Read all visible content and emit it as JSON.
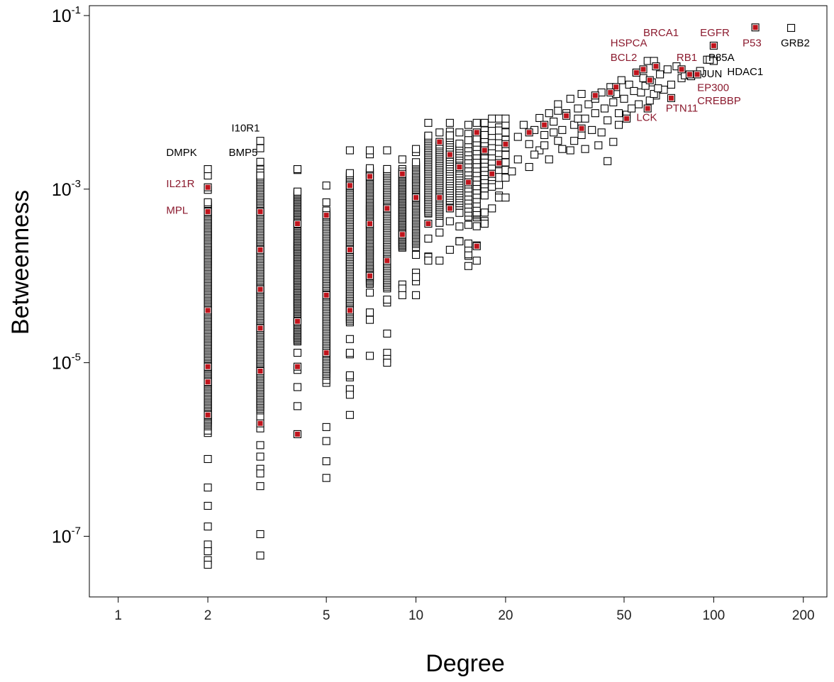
{
  "colors": {
    "axis": "#000000",
    "marker_default": "#000000",
    "marker_highlight": "#c0141c",
    "label_highlight": "#8b1a2e",
    "label_default": "#000000"
  },
  "chart_data": {
    "type": "scatter",
    "title": "",
    "xlabel": "Degree",
    "ylabel": "Betweenness",
    "xscale": "log",
    "yscale": "log",
    "xlim": [
      0.8,
      240
    ],
    "ylim": [
      2e-08,
      0.13
    ],
    "grid": false,
    "xticks": [
      {
        "value": 1,
        "label": "1"
      },
      {
        "value": 2,
        "label": "2"
      },
      {
        "value": 5,
        "label": "5"
      },
      {
        "value": 10,
        "label": "10"
      },
      {
        "value": 20,
        "label": "20"
      },
      {
        "value": 50,
        "label": "50"
      },
      {
        "value": 100,
        "label": "100"
      },
      {
        "value": 200,
        "label": "200"
      }
    ],
    "yticks": [
      {
        "value": 0.1,
        "base": "10",
        "exp": "-1"
      },
      {
        "value": 0.001,
        "base": "10",
        "exp": "-3"
      },
      {
        "value": 1e-05,
        "base": "10",
        "exp": "-5"
      },
      {
        "value": 1e-07,
        "base": "10",
        "exp": "-7"
      }
    ],
    "columns": [
      {
        "x": 2,
        "ymin": 4.7e-08,
        "ymax": 0.0017,
        "n_sparse": 18,
        "n_dense": 150,
        "highlight": [
          0.00105,
          0.00055,
          9e-06,
          6e-06,
          2.5e-06,
          4e-05
        ]
      },
      {
        "x": 3,
        "ymin": 6e-08,
        "ymax": 0.0036,
        "n_sparse": 20,
        "n_dense": 150,
        "highlight": [
          0.00055,
          0.0002,
          7e-05,
          2.5e-05,
          2e-06,
          8e-06
        ]
      },
      {
        "x": 4,
        "ymin": 1.5e-06,
        "ymax": 0.0017,
        "n_sparse": 12,
        "n_dense": 120,
        "highlight": [
          1.5e-06,
          9e-06,
          0.0004,
          3e-05
        ]
      },
      {
        "x": 5,
        "ymin": 4.7e-07,
        "ymax": 0.0011,
        "n_sparse": 14,
        "n_dense": 100,
        "highlight": [
          1.3e-05,
          0.0005,
          6e-05
        ]
      },
      {
        "x": 6,
        "ymin": 2.5e-06,
        "ymax": 0.0028,
        "n_sparse": 14,
        "n_dense": 90,
        "highlight": [
          0.0011,
          0.0002,
          4e-05
        ]
      },
      {
        "x": 7,
        "ymin": 1.2e-05,
        "ymax": 0.0028,
        "n_sparse": 12,
        "n_dense": 80,
        "highlight": [
          0.0014,
          0.0004,
          0.0001
        ]
      },
      {
        "x": 8,
        "ymin": 1e-05,
        "ymax": 0.0028,
        "n_sparse": 12,
        "n_dense": 70,
        "highlight": [
          0.0006,
          0.00015
        ]
      },
      {
        "x": 9,
        "ymin": 6e-05,
        "ymax": 0.0022,
        "n_sparse": 10,
        "n_dense": 60,
        "highlight": [
          0.0015,
          0.0003
        ]
      },
      {
        "x": 10,
        "ymin": 6e-05,
        "ymax": 0.0029,
        "n_sparse": 10,
        "n_dense": 55,
        "highlight": [
          0.0008
        ]
      },
      {
        "x": 11,
        "ymin": 0.00015,
        "ymax": 0.0058,
        "n_sparse": 10,
        "n_dense": 45,
        "highlight": [
          0.0004
        ]
      },
      {
        "x": 12,
        "ymin": 0.00015,
        "ymax": 0.0045,
        "n_sparse": 10,
        "n_dense": 40,
        "highlight": [
          0.0035,
          0.0008
        ]
      },
      {
        "x": 13,
        "ymin": 0.0002,
        "ymax": 0.0058,
        "n_sparse": 8,
        "n_dense": 30,
        "highlight": [
          0.0025,
          0.0006
        ]
      },
      {
        "x": 14,
        "ymin": 0.00025,
        "ymax": 0.0045,
        "n_sparse": 8,
        "n_dense": 25,
        "highlight": [
          0.0018
        ]
      },
      {
        "x": 15,
        "ymin": 0.00013,
        "ymax": 0.0055,
        "n_sparse": 8,
        "n_dense": 20,
        "highlight": [
          0.0012
        ]
      },
      {
        "x": 16,
        "ymin": 0.00015,
        "ymax": 0.0058,
        "n_sparse": 8,
        "n_dense": 18,
        "highlight": [
          0.00022,
          0.0045
        ]
      },
      {
        "x": 17,
        "ymin": 0.0004,
        "ymax": 0.0058,
        "n_sparse": 8,
        "n_dense": 14,
        "highlight": [
          0.0028
        ]
      },
      {
        "x": 18,
        "ymin": 0.0006,
        "ymax": 0.0065,
        "n_sparse": 8,
        "n_dense": 10,
        "highlight": [
          0.0015
        ]
      },
      {
        "x": 19,
        "ymin": 0.0008,
        "ymax": 0.0065,
        "n_sparse": 8,
        "n_dense": 8,
        "highlight": [
          0.002
        ]
      },
      {
        "x": 20,
        "ymin": 0.0008,
        "ymax": 0.0065,
        "n_sparse": 8,
        "n_dense": 6,
        "highlight": [
          0.0033
        ]
      }
    ],
    "extra_points": [
      [
        21,
        0.0016
      ],
      [
        22,
        0.004
      ],
      [
        22,
        0.0022
      ],
      [
        23,
        0.0055
      ],
      [
        24,
        0.0033
      ],
      [
        24,
        0.0018
      ],
      [
        25,
        0.0048
      ],
      [
        26,
        0.0028
      ],
      [
        26,
        0.0066
      ],
      [
        27,
        0.0042
      ],
      [
        28,
        0.0022
      ],
      [
        28,
        0.0075
      ],
      [
        29,
        0.006
      ],
      [
        30,
        0.0036
      ],
      [
        30,
        0.0095
      ],
      [
        31,
        0.0048
      ],
      [
        32,
        0.0075
      ],
      [
        33,
        0.0028
      ],
      [
        33,
        0.011
      ],
      [
        34,
        0.0055
      ],
      [
        35,
        0.0085
      ],
      [
        36,
        0.0042
      ],
      [
        36,
        0.0125
      ],
      [
        37,
        0.0065
      ],
      [
        38,
        0.0095
      ],
      [
        39,
        0.0048
      ],
      [
        40,
        0.011
      ],
      [
        40,
        0.0075
      ],
      [
        41,
        0.0032
      ],
      [
        42,
        0.013
      ],
      [
        43,
        0.0085
      ],
      [
        44,
        0.0062
      ],
      [
        45,
        0.015
      ],
      [
        46,
        0.01
      ],
      [
        47,
        0.0125
      ],
      [
        48,
        0.0075
      ],
      [
        49,
        0.018
      ],
      [
        50,
        0.011
      ],
      [
        52,
        0.016
      ],
      [
        54,
        0.0135
      ],
      [
        55,
        0.022
      ],
      [
        56,
        0.0095
      ],
      [
        58,
        0.019
      ],
      [
        60,
        0.03
      ],
      [
        62,
        0.017
      ],
      [
        64,
        0.012
      ],
      [
        66,
        0.021
      ],
      [
        68,
        0.014
      ],
      [
        70,
        0.024
      ],
      [
        72,
        0.016
      ],
      [
        75,
        0.026
      ],
      [
        78,
        0.019
      ],
      [
        80,
        0.0205
      ],
      [
        84,
        0.02
      ],
      [
        90,
        0.023
      ],
      [
        95,
        0.031
      ],
      [
        100,
        0.03
      ],
      [
        25,
        0.0025
      ],
      [
        27,
        0.0032
      ],
      [
        29,
        0.0045
      ],
      [
        31,
        0.0029
      ],
      [
        34,
        0.0036
      ],
      [
        37,
        0.0029
      ],
      [
        42,
        0.0045
      ],
      [
        44,
        0.0021
      ],
      [
        46,
        0.0035
      ],
      [
        48,
        0.0055
      ],
      [
        51,
        0.0072
      ],
      [
        53,
        0.0085
      ],
      [
        57,
        0.013
      ],
      [
        59,
        0.0155
      ],
      [
        61,
        0.0105
      ],
      [
        63,
        0.0125
      ],
      [
        65,
        0.0145
      ]
    ],
    "highlight_points": [
      [
        138,
        0.073
      ],
      [
        100,
        0.045
      ],
      [
        78,
        0.024
      ],
      [
        88,
        0.021
      ],
      [
        83,
        0.021
      ],
      [
        72,
        0.0112
      ],
      [
        60,
        0.0085
      ],
      [
        51,
        0.0065
      ],
      [
        55,
        0.022
      ],
      [
        64,
        0.026
      ],
      [
        58,
        0.024
      ],
      [
        61,
        0.018
      ],
      [
        47,
        0.015
      ],
      [
        45,
        0.013
      ],
      [
        40,
        0.012
      ],
      [
        36,
        0.005
      ],
      [
        27,
        0.0055
      ],
      [
        32,
        0.007
      ],
      [
        24,
        0.0045
      ]
    ],
    "other_marked_points": [
      [
        182,
        0.072
      ],
      [
        100,
        0.03
      ],
      [
        97,
        0.031
      ],
      [
        63,
        0.03
      ],
      [
        30,
        0.008
      ],
      [
        35,
        0.0065
      ]
    ],
    "annotations": [
      {
        "text": "DMPK",
        "color": "default",
        "x": 1.45,
        "y": 0.0024
      },
      {
        "text": "IL21R",
        "color": "highlight",
        "x": 1.45,
        "y": 0.00105
      },
      {
        "text": "MPL",
        "color": "highlight",
        "x": 1.45,
        "y": 0.00052
      },
      {
        "text": "I10R1",
        "color": "default",
        "x": 2.4,
        "y": 0.0046
      },
      {
        "text": "BMP5",
        "color": "default",
        "x": 2.35,
        "y": 0.0024
      },
      {
        "text": "HSPCA",
        "color": "highlight",
        "x": 45,
        "y": 0.044
      },
      {
        "text": "BRCA1",
        "color": "highlight",
        "x": 58,
        "y": 0.058
      },
      {
        "text": "EGFR",
        "color": "highlight",
        "x": 90,
        "y": 0.058
      },
      {
        "text": "BCL2",
        "color": "highlight",
        "x": 45,
        "y": 0.03
      },
      {
        "text": "RB1",
        "color": "highlight",
        "x": 75,
        "y": 0.03
      },
      {
        "text": "P85A",
        "color": "default",
        "x": 96,
        "y": 0.03
      },
      {
        "text": "P53",
        "color": "highlight",
        "x": 125,
        "y": 0.044
      },
      {
        "text": "GRB2",
        "color": "default",
        "x": 168,
        "y": 0.044
      },
      {
        "text": "JUN",
        "color": "default",
        "x": 91,
        "y": 0.0195
      },
      {
        "text": "HDAC1",
        "color": "default",
        "x": 111,
        "y": 0.0205
      },
      {
        "text": "EP300",
        "color": "highlight",
        "x": 88,
        "y": 0.0135
      },
      {
        "text": "CREBBP",
        "color": "highlight",
        "x": 88,
        "y": 0.0095
      },
      {
        "text": "PTN11",
        "color": "highlight",
        "x": 69,
        "y": 0.0078
      },
      {
        "text": "LCK",
        "color": "highlight",
        "x": 55,
        "y": 0.0061
      }
    ]
  }
}
